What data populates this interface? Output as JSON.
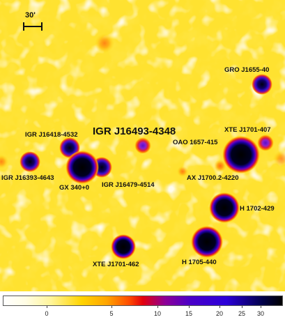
{
  "scale_label": "30'",
  "sources": [
    {
      "name": "IGR J16493-4348",
      "kind": "label-only"
    },
    {
      "name": "GRO J1655-40"
    },
    {
      "name": "XTE J1701-407"
    },
    {
      "name": "OAO 1657-415"
    },
    {
      "name": "IGR J16418-4532"
    },
    {
      "name": "IGR J16393-4643"
    },
    {
      "name": "GX 340+0"
    },
    {
      "name": "IGR J16479-4514"
    },
    {
      "name": "AX J1700.2-4220"
    },
    {
      "name": "H 1702-429"
    },
    {
      "name": "XTE J1701-462"
    },
    {
      "name": "H 1705-440"
    }
  ],
  "colorbar": {
    "ticks": [
      "0",
      "5",
      "10",
      "15",
      "20",
      "25",
      "30"
    ],
    "tick_values": [
      0,
      5,
      10,
      15,
      20,
      25,
      30
    ],
    "colors": [
      "#ffffff",
      "#fff59a",
      "#ffd400",
      "#ffa500",
      "#e3000d",
      "#8d0097",
      "#2b00d9",
      "#000000"
    ]
  }
}
